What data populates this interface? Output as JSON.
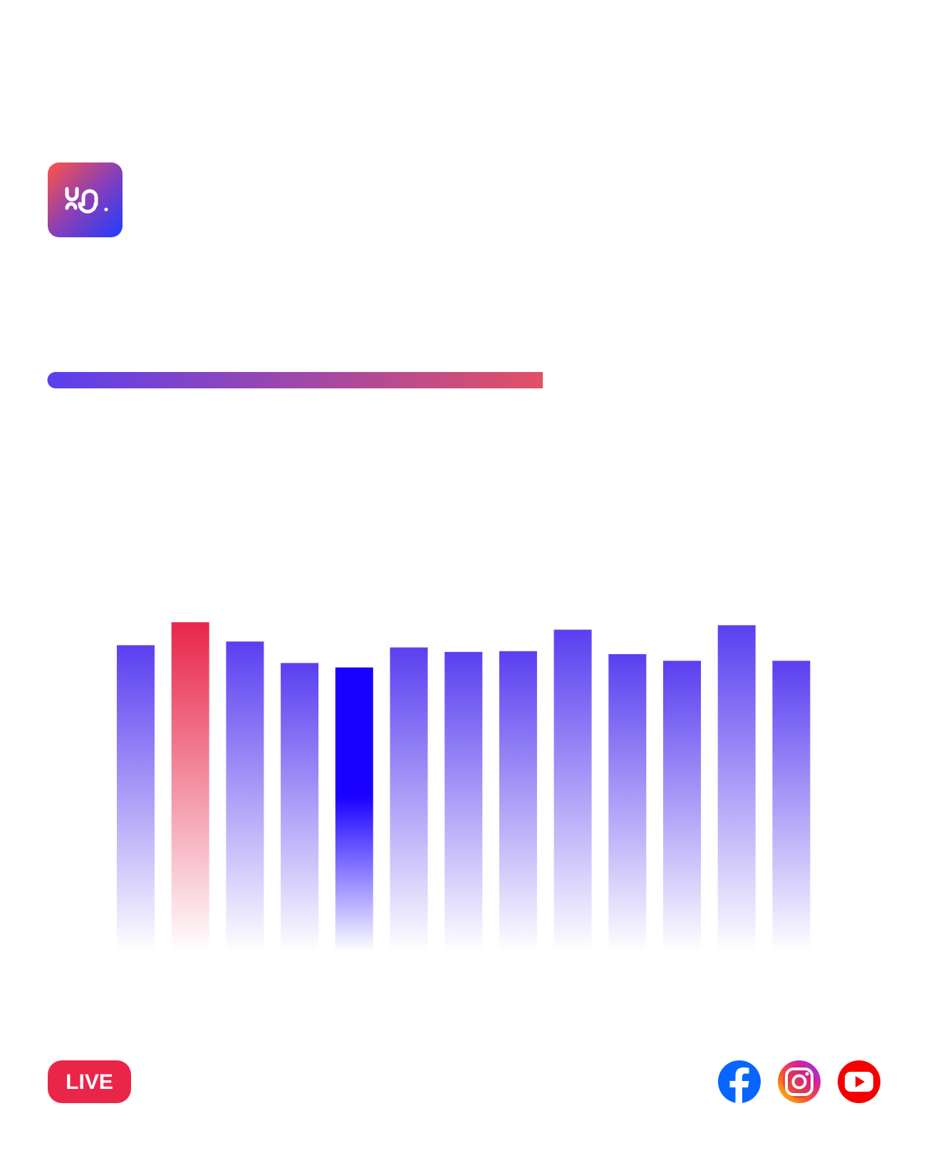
{
  "live_label": "LIVE",
  "chart_data": {
    "type": "bar",
    "values": [
      414,
      445,
      419,
      390,
      384,
      411,
      405,
      406,
      435,
      402,
      393,
      441,
      393
    ],
    "colors": [
      "#5a3ff0",
      "#e8264a",
      "#5a3ff0",
      "#5a3ff0",
      "#1a00ff",
      "#5a3ff0",
      "#5a3ff0",
      "#5a3ff0",
      "#5a3ff0",
      "#5a3ff0",
      "#5a3ff0",
      "#5a3ff0",
      "#5a3ff0"
    ],
    "ylim": [
      0,
      450
    ]
  }
}
